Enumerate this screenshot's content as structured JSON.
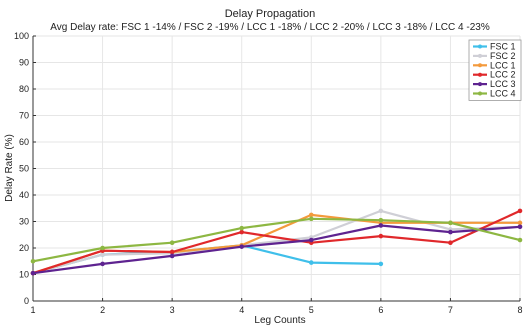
{
  "chart_data": {
    "type": "line",
    "title": "Delay Propagation",
    "subtitle": "Avg Delay rate: FSC 1 -14% / FSC 2 -19% / LCC 1 -18% / LCC 2 -20% / LCC 3 -18% / LCC 4 -23%",
    "xlabel": "Leg Counts",
    "ylabel": "Delay Rate (%)",
    "xlim": [
      1,
      8
    ],
    "ylim": [
      0,
      100
    ],
    "x_ticks": [
      1,
      2,
      3,
      4,
      5,
      6,
      7,
      8
    ],
    "y_ticks": [
      0,
      10,
      20,
      30,
      40,
      50,
      60,
      70,
      80,
      90,
      100
    ],
    "grid": true,
    "legend_position": "top-right",
    "series": [
      {
        "name": "FSC 1",
        "color": "#3fbfea",
        "x": [
          1,
          2,
          3,
          4,
          5,
          6
        ],
        "values": [
          10.5,
          17.5,
          18.5,
          21,
          14.5,
          14
        ]
      },
      {
        "name": "FSC 2",
        "color": "#cfcfd6",
        "x": [
          1,
          2,
          3,
          4,
          5,
          6,
          7,
          8
        ],
        "values": [
          10.5,
          17.5,
          18,
          21,
          24,
          34,
          27,
          28
        ]
      },
      {
        "name": "LCC 1",
        "color": "#f39a3c",
        "x": [
          1,
          2,
          3,
          4,
          5,
          6,
          7,
          8
        ],
        "values": [
          10.5,
          19,
          18.5,
          21,
          32.5,
          29.5,
          29.5,
          29.5
        ]
      },
      {
        "name": "LCC 2",
        "color": "#e0282b",
        "x": [
          1,
          2,
          3,
          4,
          5,
          6,
          7,
          8
        ],
        "values": [
          10.5,
          19,
          18.5,
          26,
          22,
          24.5,
          22,
          34
        ]
      },
      {
        "name": "LCC 3",
        "color": "#5e2390",
        "x": [
          1,
          2,
          3,
          4,
          5,
          6,
          7,
          8
        ],
        "values": [
          10.5,
          14,
          17,
          20.5,
          23,
          28.5,
          26,
          28
        ]
      },
      {
        "name": "LCC 4",
        "color": "#8db742",
        "x": [
          1,
          2,
          3,
          4,
          5,
          6,
          7,
          8
        ],
        "values": [
          15,
          20,
          22,
          27.5,
          31,
          30.5,
          29.5,
          23
        ]
      }
    ]
  }
}
